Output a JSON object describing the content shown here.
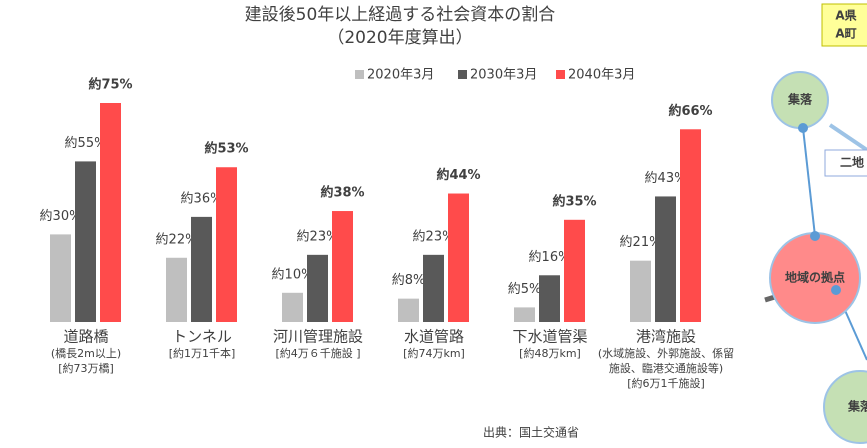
{
  "chart_data": {
    "type": "bar",
    "title": "建設後50年以上経過する社会資本の割合",
    "subtitle": "（2020年度算出）",
    "categories": [
      "道路橋",
      "トンネル",
      "河川管理施設",
      "水道管路",
      "下水道管渠",
      "港湾施設"
    ],
    "category_notes": [
      [
        "(橋長2m以上)",
        "[約73万橋]"
      ],
      [
        "[約1万1千本]"
      ],
      [
        "[約4万６千施設 ]"
      ],
      [
        "[約74万km]"
      ],
      [
        "[約48万km]"
      ],
      [
        "(水域施設、外郭施設、係留",
        "施設、臨港交通施設等)",
        "[約6万1千施設]"
      ]
    ],
    "series": [
      {
        "name": "2020年3月",
        "color": "#bfbfbf",
        "values": [
          30,
          22,
          10,
          8,
          5,
          21
        ],
        "value_labels": [
          "約30%",
          "約22%",
          "約10%",
          "約8%",
          "約5%",
          "約21%"
        ]
      },
      {
        "name": "2030年3月",
        "color": "#595959",
        "values": [
          55,
          36,
          23,
          23,
          16,
          43
        ],
        "value_labels": [
          "約55%",
          "約36%",
          "約23%",
          "約23%",
          "約16%",
          "約43%"
        ]
      },
      {
        "name": "2040年3月",
        "color": "#ff4b4b",
        "values": [
          75,
          53,
          38,
          44,
          35,
          66
        ],
        "value_labels": [
          "約75%",
          "約53%",
          "約38%",
          "約44%",
          "約35%",
          "約66%"
        ]
      }
    ],
    "source": "出典：国土交通省"
  },
  "diagram": {
    "region": [
      "A県",
      "A町"
    ],
    "nodes": [
      "集落",
      "二地",
      "地域の拠点",
      "集落"
    ]
  }
}
